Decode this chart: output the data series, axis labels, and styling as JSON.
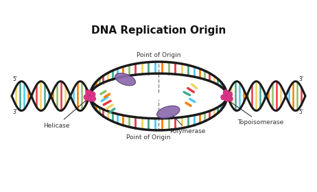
{
  "title": "DNA Replication Origin",
  "title_fontsize": 11,
  "title_fontweight": "bold",
  "bg_color": "#ffffff",
  "strand_color": "#1a1a1a",
  "strand_lw": 2.2,
  "base_colors": [
    "#e63946",
    "#f4d35e",
    "#43aa8b",
    "#4cc9f0",
    "#f77f00",
    "#90be6d"
  ],
  "helicase_color": "#d63384",
  "polymerase_color": "#8b6aac",
  "labels": {
    "point_of_origin_top": "Point of Origin",
    "point_of_origin_bot": "Point of Origin",
    "helicase": "Helicase",
    "polymerase": "Polymerase",
    "topoisomerase": "Topoisomerase"
  },
  "figsize": [
    4.62,
    2.8
  ],
  "dpi": 100
}
